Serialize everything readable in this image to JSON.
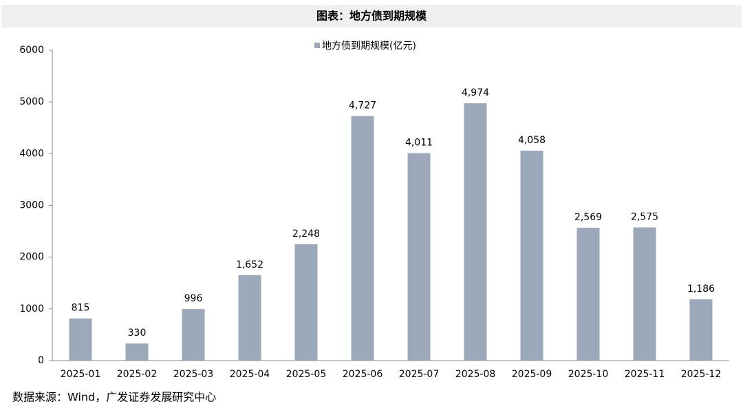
{
  "chart_data": {
    "type": "bar",
    "title": "图表：地方债到期规模",
    "categories": [
      "2025-01",
      "2025-02",
      "2025-03",
      "2025-04",
      "2025-05",
      "2025-06",
      "2025-07",
      "2025-08",
      "2025-09",
      "2025-10",
      "2025-11",
      "2025-12"
    ],
    "series": [
      {
        "name": "地方债到期规模(亿元)",
        "color": "#9aa8b9",
        "values": [
          815,
          330,
          996,
          1652,
          2248,
          4727,
          4011,
          4974,
          4058,
          2569,
          2575,
          1186
        ],
        "value_labels": [
          "815",
          "330",
          "996",
          "1,652",
          "2,248",
          "4,727",
          "4,011",
          "4,974",
          "4,058",
          "2,569",
          "2,575",
          "1,186"
        ]
      }
    ],
    "ylim": [
      0,
      6000
    ],
    "yticks": [
      0,
      1000,
      2000,
      3000,
      4000,
      5000,
      6000
    ],
    "grid": false,
    "legend": "top",
    "source": "数据来源：Wind，广发证券发展研究中心"
  }
}
